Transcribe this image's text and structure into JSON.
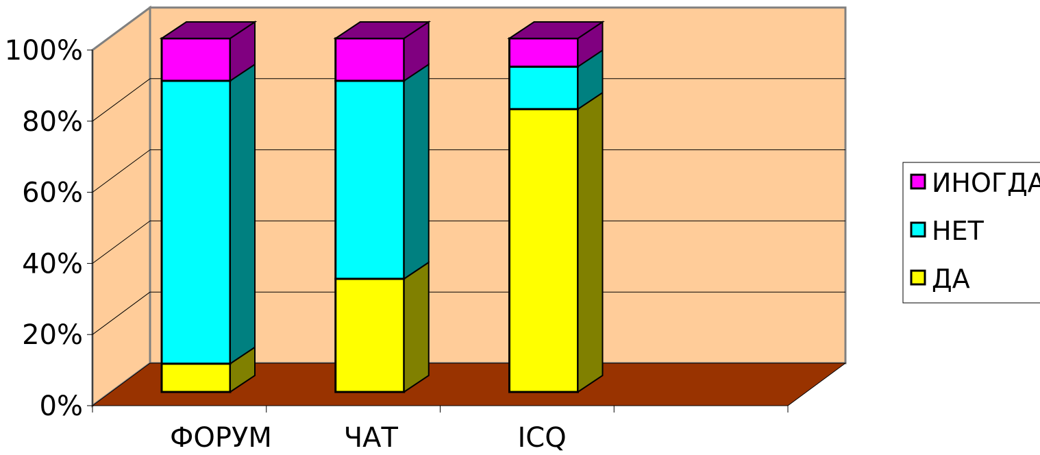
{
  "chart_data": {
    "type": "bar",
    "stacked": "percent",
    "three_d": true,
    "categories": [
      "ФОРУМ",
      "ЧАТ",
      "ICQ"
    ],
    "series": [
      {
        "name": "ДА",
        "values": [
          8,
          32,
          80
        ],
        "color": "#ffff00",
        "side_color": "#808000"
      },
      {
        "name": "НЕТ",
        "values": [
          80,
          56,
          12
        ],
        "color": "#00ffff",
        "side_color": "#008080"
      },
      {
        "name": "ИНОГДА",
        "values": [
          12,
          12,
          8
        ],
        "color": "#ff00ff",
        "side_color": "#800080"
      }
    ],
    "yticks": [
      "0%",
      "20%",
      "40%",
      "60%",
      "80%",
      "100%"
    ],
    "ylim": [
      0,
      100
    ],
    "grid": true,
    "legend_position": "right",
    "colors": {
      "back_wall": "#ffcc99",
      "floor": "#993300"
    }
  }
}
